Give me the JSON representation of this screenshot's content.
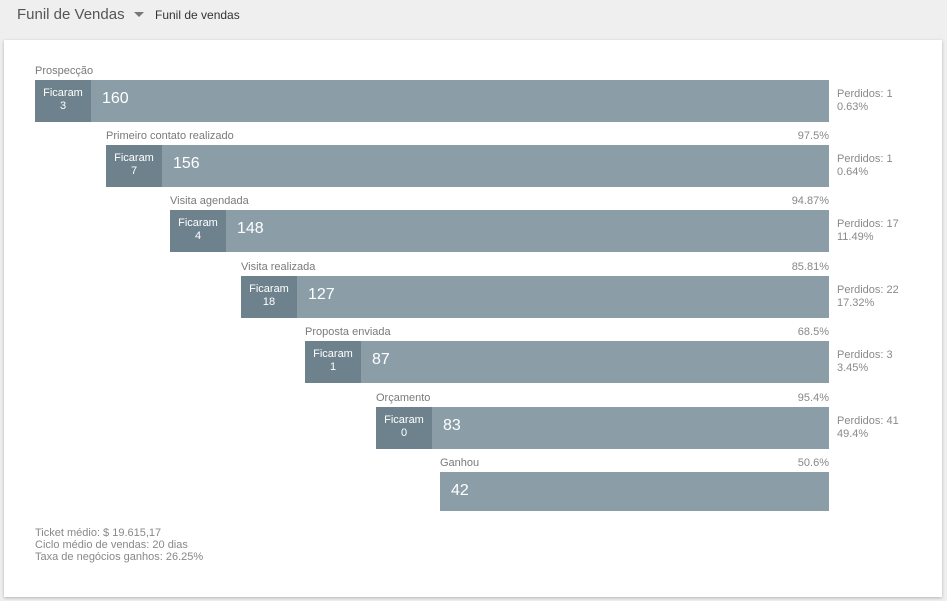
{
  "header": {
    "dropdown_label": "Funil de Vendas",
    "breadcrumb": "Funil de vendas"
  },
  "stages": [
    {
      "name": "Prospecção",
      "pct": "",
      "stay_label": "Ficaram",
      "stay_count": "3",
      "value": "160",
      "lost_label": "Perdidos: 1",
      "lost_pct": "0.63%"
    },
    {
      "name": "Primeiro contato realizado",
      "pct": "97.5%",
      "stay_label": "Ficaram",
      "stay_count": "7",
      "value": "156",
      "lost_label": "Perdidos: 1",
      "lost_pct": "0.64%"
    },
    {
      "name": "Visita agendada",
      "pct": "94.87%",
      "stay_label": "Ficaram",
      "stay_count": "4",
      "value": "148",
      "lost_label": "Perdidos: 17",
      "lost_pct": "11.49%"
    },
    {
      "name": "Visita realizada",
      "pct": "85.81%",
      "stay_label": "Ficaram",
      "stay_count": "18",
      "value": "127",
      "lost_label": "Perdidos: 22",
      "lost_pct": "17.32%"
    },
    {
      "name": "Proposta enviada",
      "pct": "68.5%",
      "stay_label": "Ficaram",
      "stay_count": "1",
      "value": "87",
      "lost_label": "Perdidos: 3",
      "lost_pct": "3.45%"
    },
    {
      "name": "Orçamento",
      "pct": "95.4%",
      "stay_label": "Ficaram",
      "stay_count": "0",
      "value": "83",
      "lost_label": "Perdidos: 41",
      "lost_pct": "49.4%"
    },
    {
      "name": "Ganhou",
      "pct": "50.6%",
      "value": "42"
    }
  ],
  "footer": {
    "ticket": "Ticket médio: $ 19.615,17",
    "cycle": "Ciclo médio de vendas: 20 dias",
    "win_rate": "Taxa de negócios ganhos: 26.25%"
  }
}
